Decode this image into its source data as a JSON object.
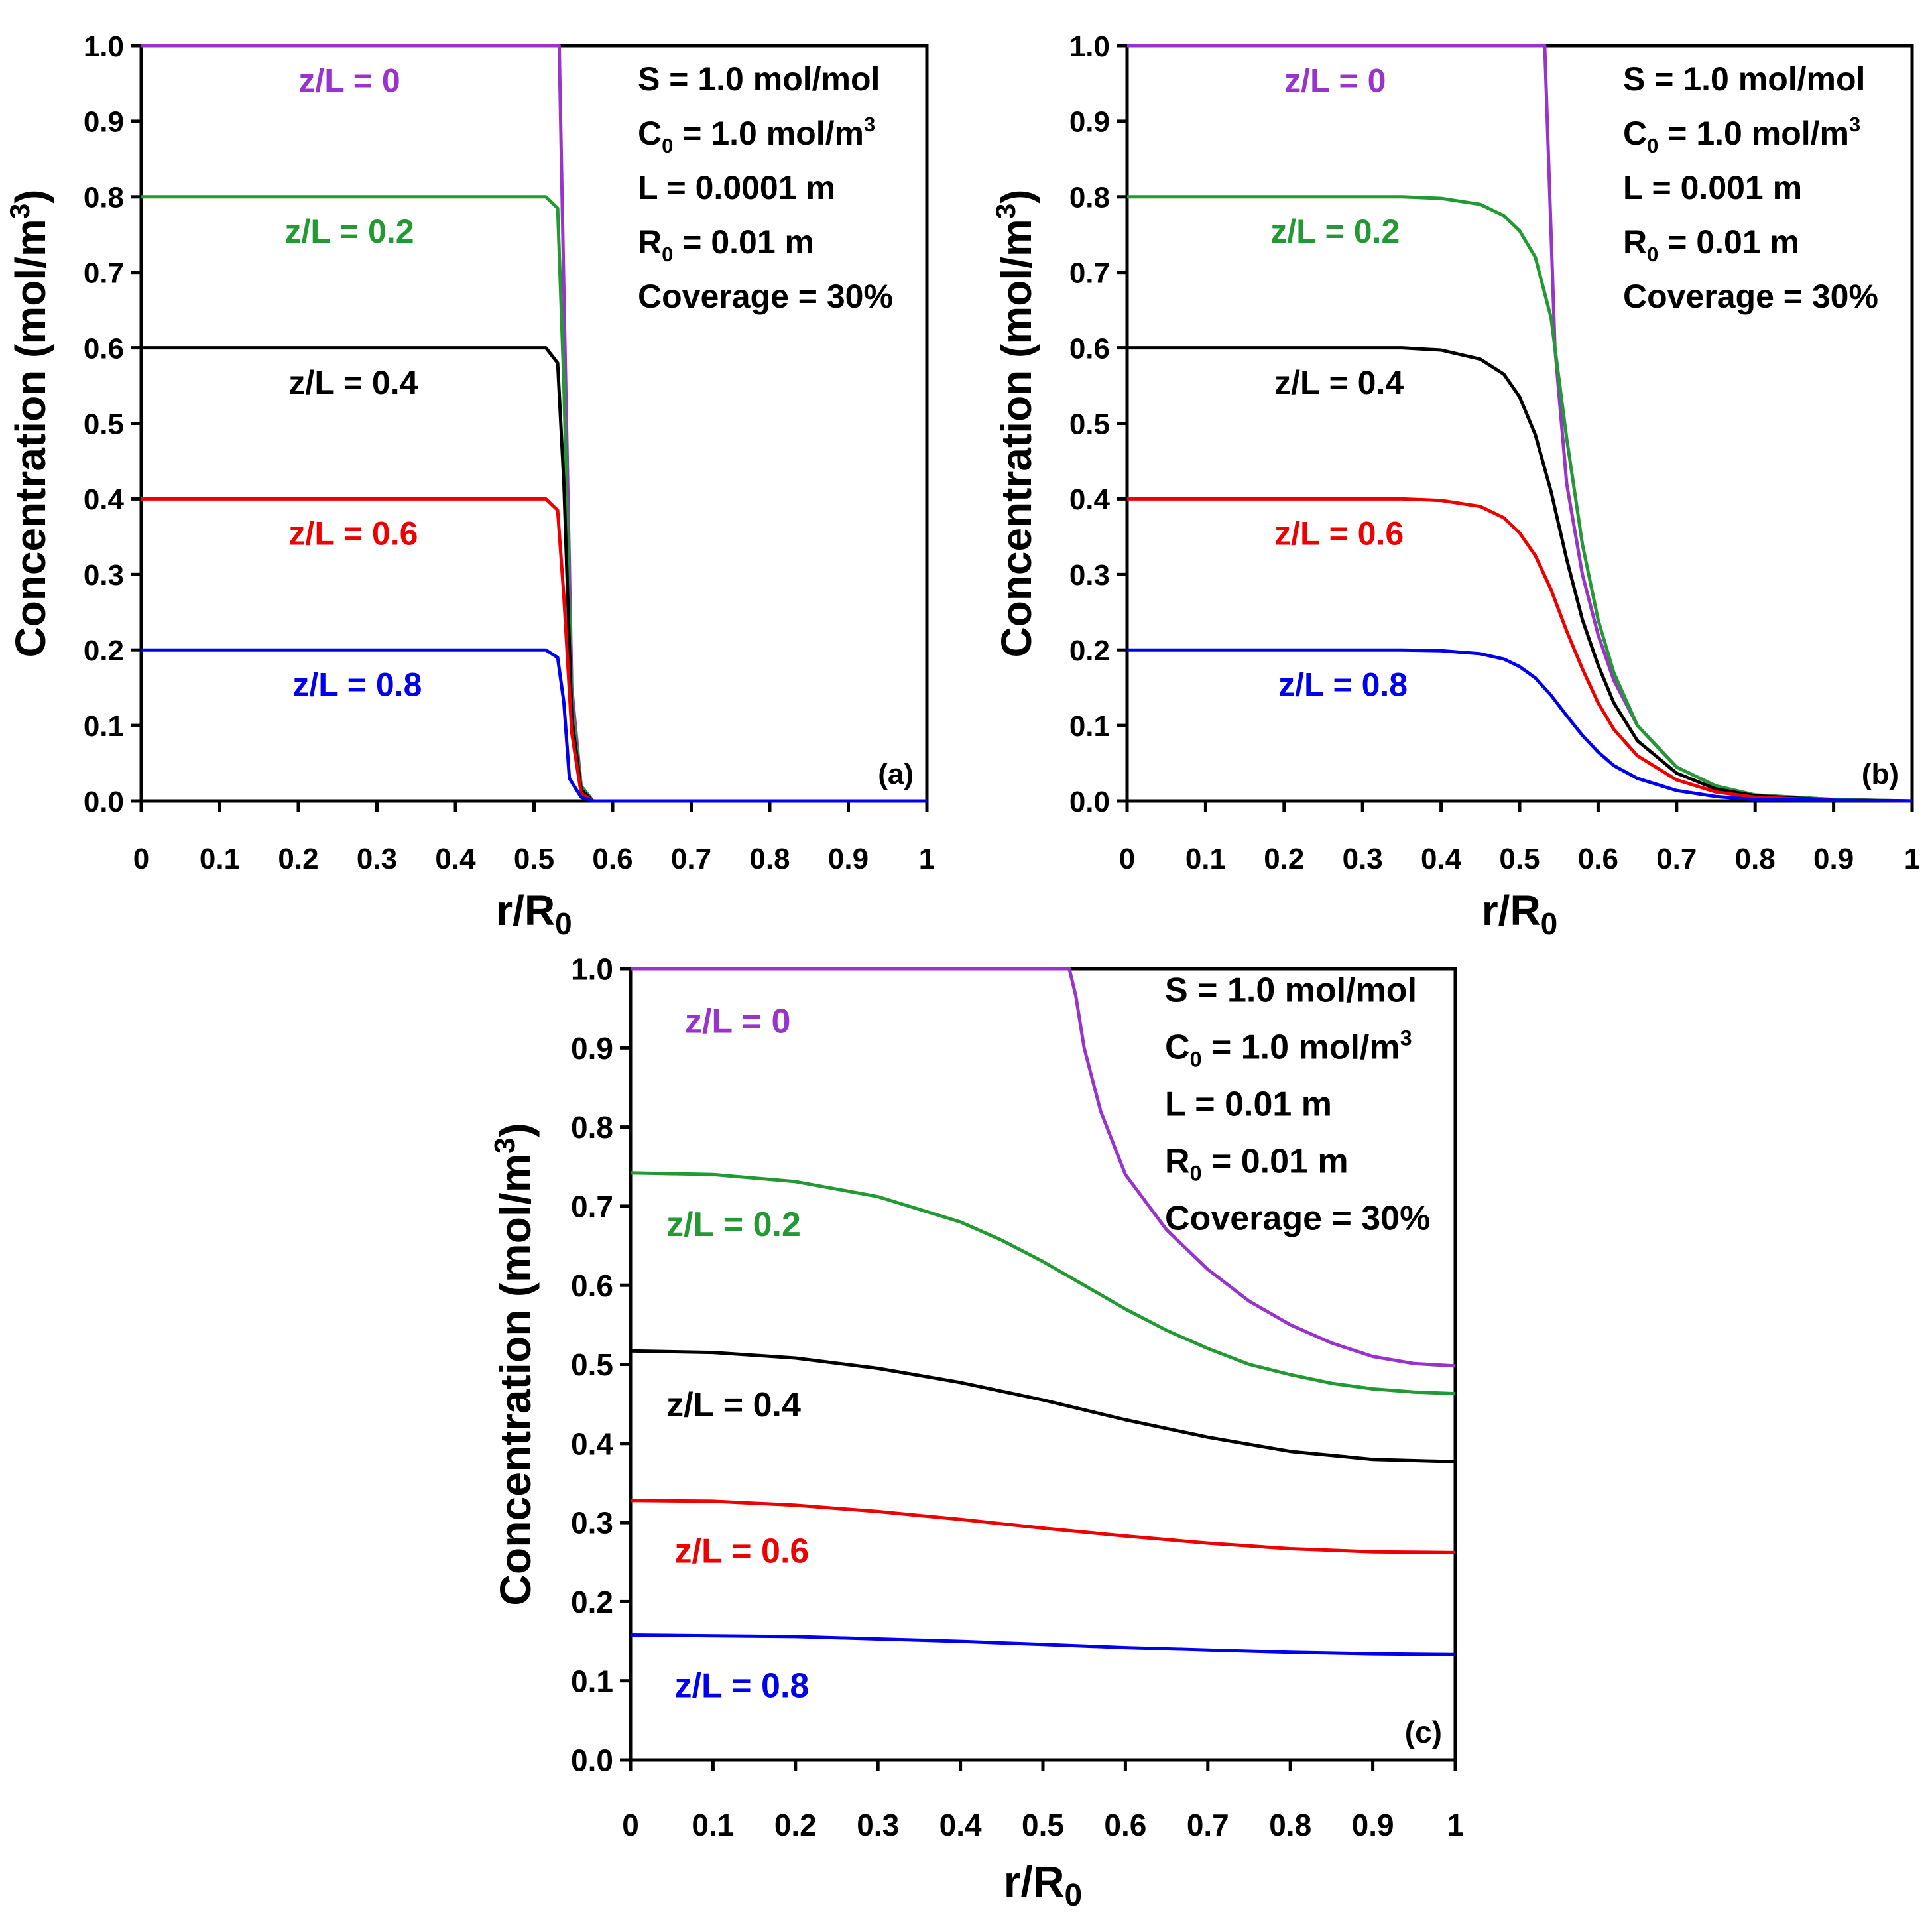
{
  "chart_data": [
    {
      "type": "line",
      "panel_label": "(a)",
      "xlabel": {
        "main": "r/R",
        "sub": "0"
      },
      "ylabel": {
        "main": "Concentration (mol/m",
        "sup": "3",
        "close": ")"
      },
      "xlim": [
        0,
        1
      ],
      "ylim": [
        0,
        1
      ],
      "xticks": [
        "0",
        "0.1",
        "0.2",
        "0.3",
        "0.4",
        "0.5",
        "0.6",
        "0.7",
        "0.8",
        "0.9",
        "1"
      ],
      "yticks": [
        "0.0",
        "0.1",
        "0.2",
        "0.3",
        "0.4",
        "0.5",
        "0.6",
        "0.7",
        "0.8",
        "0.9",
        "1.0"
      ],
      "params": [
        {
          "text": "S = 1.0 mol/mol"
        },
        {
          "pre": "C",
          "sub": "0",
          "post": " = 1.0 mol/m",
          "sup": "3"
        },
        {
          "text": "L = 0.0001 m"
        },
        {
          "pre": "R",
          "sub": "0",
          "post": " = 0.01 m"
        },
        {
          "text": "Coverage = 30%"
        }
      ],
      "series": [
        {
          "name": "z/L = 0",
          "color": "#9933CC",
          "points": [
            [
              0,
              1.0
            ],
            [
              0.532,
              1.0
            ],
            [
              0.539,
              0.62
            ],
            [
              0.548,
              0.15
            ],
            [
              0.56,
              0.02
            ],
            [
              0.575,
              0.0
            ],
            [
              1.0,
              0.0
            ]
          ]
        },
        {
          "name": "z/L = 0.2",
          "color": "#229933",
          "points": [
            [
              0,
              0.8
            ],
            [
              0.515,
              0.8
            ],
            [
              0.53,
              0.785
            ],
            [
              0.538,
              0.55
            ],
            [
              0.548,
              0.13
            ],
            [
              0.56,
              0.02
            ],
            [
              0.575,
              0.0
            ],
            [
              1.0,
              0.0
            ]
          ]
        },
        {
          "name": "z/L = 0.4",
          "color": "#000000",
          "points": [
            [
              0,
              0.6
            ],
            [
              0.515,
              0.6
            ],
            [
              0.53,
              0.58
            ],
            [
              0.538,
              0.42
            ],
            [
              0.548,
              0.11
            ],
            [
              0.56,
              0.015
            ],
            [
              0.575,
              0.0
            ],
            [
              1.0,
              0.0
            ]
          ]
        },
        {
          "name": "z/L = 0.6",
          "color": "#EE0000",
          "points": [
            [
              0,
              0.4
            ],
            [
              0.515,
              0.4
            ],
            [
              0.53,
              0.385
            ],
            [
              0.538,
              0.27
            ],
            [
              0.548,
              0.09
            ],
            [
              0.56,
              0.01
            ],
            [
              0.575,
              0.0
            ],
            [
              1.0,
              0.0
            ]
          ]
        },
        {
          "name": "z/L = 0.8",
          "color": "#0000EE",
          "points": [
            [
              0,
              0.2
            ],
            [
              0.515,
              0.2
            ],
            [
              0.53,
              0.19
            ],
            [
              0.538,
              0.13
            ],
            [
              0.545,
              0.03
            ],
            [
              0.56,
              0.005
            ],
            [
              0.575,
              0.0
            ],
            [
              1.0,
              0.0
            ]
          ]
        }
      ],
      "series_labels": [
        {
          "text": "z/L = 0",
          "color": "#9933CC",
          "x": 0.265,
          "y": 0.955
        },
        {
          "text": "z/L = 0.2",
          "color": "#229933",
          "x": 0.265,
          "y": 0.755
        },
        {
          "text": "z/L = 0.4",
          "color": "#000000",
          "x": 0.27,
          "y": 0.555
        },
        {
          "text": "z/L = 0.6",
          "color": "#EE0000",
          "x": 0.27,
          "y": 0.355
        },
        {
          "text": "z/L = 0.8",
          "color": "#0000EE",
          "x": 0.275,
          "y": 0.155
        }
      ]
    },
    {
      "type": "line",
      "panel_label": "(b)",
      "xlabel": {
        "main": "r/R",
        "sub": "0"
      },
      "ylabel": {
        "main": "Concentration (mol/m",
        "sup": "3",
        "close": ")"
      },
      "xlim": [
        0,
        1
      ],
      "ylim": [
        0,
        1
      ],
      "xticks": [
        "0",
        "0.1",
        "0.2",
        "0.3",
        "0.4",
        "0.5",
        "0.6",
        "0.7",
        "0.8",
        "0.9",
        "1"
      ],
      "yticks": [
        "0.0",
        "0.1",
        "0.2",
        "0.3",
        "0.4",
        "0.5",
        "0.6",
        "0.7",
        "0.8",
        "0.9",
        "1.0"
      ],
      "params": [
        {
          "text": "S = 1.0 mol/mol"
        },
        {
          "pre": "C",
          "sub": "0",
          "post": " = 1.0 mol/m",
          "sup": "3"
        },
        {
          "text": "L = 0.001 m"
        },
        {
          "pre": "R",
          "sub": "0",
          "post": " = 0.01 m"
        },
        {
          "text": "Coverage = 30%"
        }
      ],
      "series": [
        {
          "name": "z/L = 0",
          "color": "#9933CC",
          "points": [
            [
              0,
              1.0
            ],
            [
              0.532,
              1.0
            ],
            [
              0.545,
              0.6
            ],
            [
              0.56,
              0.42
            ],
            [
              0.58,
              0.3
            ],
            [
              0.6,
              0.22
            ],
            [
              0.62,
              0.16
            ],
            [
              0.65,
              0.1
            ],
            [
              0.7,
              0.045
            ],
            [
              0.75,
              0.02
            ],
            [
              0.8,
              0.008
            ],
            [
              0.9,
              0.002
            ],
            [
              1.0,
              0.0
            ]
          ]
        },
        {
          "name": "z/L = 0.2",
          "color": "#229933",
          "points": [
            [
              0,
              0.8
            ],
            [
              0.35,
              0.8
            ],
            [
              0.4,
              0.798
            ],
            [
              0.45,
              0.79
            ],
            [
              0.48,
              0.775
            ],
            [
              0.5,
              0.755
            ],
            [
              0.52,
              0.72
            ],
            [
              0.54,
              0.64
            ],
            [
              0.56,
              0.48
            ],
            [
              0.58,
              0.34
            ],
            [
              0.6,
              0.24
            ],
            [
              0.62,
              0.17
            ],
            [
              0.65,
              0.1
            ],
            [
              0.7,
              0.045
            ],
            [
              0.75,
              0.02
            ],
            [
              0.8,
              0.008
            ],
            [
              0.9,
              0.002
            ],
            [
              1.0,
              0.0
            ]
          ]
        },
        {
          "name": "z/L = 0.4",
          "color": "#000000",
          "points": [
            [
              0,
              0.6
            ],
            [
              0.35,
              0.6
            ],
            [
              0.4,
              0.597
            ],
            [
              0.45,
              0.585
            ],
            [
              0.48,
              0.565
            ],
            [
              0.5,
              0.535
            ],
            [
              0.52,
              0.485
            ],
            [
              0.54,
              0.41
            ],
            [
              0.56,
              0.32
            ],
            [
              0.58,
              0.24
            ],
            [
              0.6,
              0.18
            ],
            [
              0.62,
              0.13
            ],
            [
              0.65,
              0.08
            ],
            [
              0.7,
              0.037
            ],
            [
              0.75,
              0.016
            ],
            [
              0.8,
              0.007
            ],
            [
              0.9,
              0.001
            ],
            [
              1.0,
              0.0
            ]
          ]
        },
        {
          "name": "z/L = 0.6",
          "color": "#EE0000",
          "points": [
            [
              0,
              0.4
            ],
            [
              0.35,
              0.4
            ],
            [
              0.4,
              0.398
            ],
            [
              0.45,
              0.39
            ],
            [
              0.48,
              0.375
            ],
            [
              0.5,
              0.355
            ],
            [
              0.52,
              0.325
            ],
            [
              0.54,
              0.28
            ],
            [
              0.56,
              0.225
            ],
            [
              0.58,
              0.175
            ],
            [
              0.6,
              0.13
            ],
            [
              0.62,
              0.095
            ],
            [
              0.65,
              0.06
            ],
            [
              0.7,
              0.028
            ],
            [
              0.75,
              0.012
            ],
            [
              0.8,
              0.005
            ],
            [
              0.9,
              0.001
            ],
            [
              1.0,
              0.0
            ]
          ]
        },
        {
          "name": "z/L = 0.8",
          "color": "#0000EE",
          "points": [
            [
              0,
              0.2
            ],
            [
              0.35,
              0.2
            ],
            [
              0.4,
              0.199
            ],
            [
              0.45,
              0.195
            ],
            [
              0.48,
              0.188
            ],
            [
              0.5,
              0.178
            ],
            [
              0.52,
              0.163
            ],
            [
              0.54,
              0.14
            ],
            [
              0.56,
              0.113
            ],
            [
              0.58,
              0.087
            ],
            [
              0.6,
              0.065
            ],
            [
              0.62,
              0.047
            ],
            [
              0.65,
              0.03
            ],
            [
              0.7,
              0.014
            ],
            [
              0.75,
              0.006
            ],
            [
              0.8,
              0.002
            ],
            [
              1.0,
              0.0
            ]
          ]
        }
      ],
      "series_labels": [
        {
          "text": "z/L = 0",
          "color": "#9933CC",
          "x": 0.265,
          "y": 0.955
        },
        {
          "text": "z/L = 0.2",
          "color": "#229933",
          "x": 0.265,
          "y": 0.755
        },
        {
          "text": "z/L = 0.4",
          "color": "#000000",
          "x": 0.27,
          "y": 0.555
        },
        {
          "text": "z/L = 0.6",
          "color": "#EE0000",
          "x": 0.27,
          "y": 0.355
        },
        {
          "text": "z/L = 0.8",
          "color": "#0000EE",
          "x": 0.275,
          "y": 0.155
        }
      ]
    },
    {
      "type": "line",
      "panel_label": "(c)",
      "xlabel": {
        "main": "r/R",
        "sub": "0"
      },
      "ylabel": {
        "main": "Concentration (mol/m",
        "sup": "3",
        "close": ")"
      },
      "xlim": [
        0,
        1
      ],
      "ylim": [
        0,
        1
      ],
      "xticks": [
        "0",
        "0.1",
        "0.2",
        "0.3",
        "0.4",
        "0.5",
        "0.6",
        "0.7",
        "0.8",
        "0.9",
        "1"
      ],
      "yticks": [
        "0.0",
        "0.1",
        "0.2",
        "0.3",
        "0.4",
        "0.5",
        "0.6",
        "0.7",
        "0.8",
        "0.9",
        "1.0"
      ],
      "params": [
        {
          "text": "S = 1.0 mol/mol"
        },
        {
          "pre": "C",
          "sub": "0",
          "post": " = 1.0 mol/m",
          "sup": "3"
        },
        {
          "text": "L = 0.01 m"
        },
        {
          "pre": "R",
          "sub": "0",
          "post": " = 0.01 m"
        },
        {
          "text": "Coverage = 30%"
        }
      ],
      "series": [
        {
          "name": "z/L = 0",
          "color": "#9933CC",
          "points": [
            [
              0,
              1.0
            ],
            [
              0.532,
              1.0
            ],
            [
              0.54,
              0.965
            ],
            [
              0.55,
              0.9
            ],
            [
              0.57,
              0.82
            ],
            [
              0.6,
              0.74
            ],
            [
              0.65,
              0.67
            ],
            [
              0.7,
              0.62
            ],
            [
              0.75,
              0.58
            ],
            [
              0.8,
              0.55
            ],
            [
              0.85,
              0.527
            ],
            [
              0.9,
              0.51
            ],
            [
              0.95,
              0.501
            ],
            [
              1.0,
              0.498
            ]
          ]
        },
        {
          "name": "z/L = 0.2",
          "color": "#229933",
          "points": [
            [
              0,
              0.742
            ],
            [
              0.1,
              0.74
            ],
            [
              0.2,
              0.731
            ],
            [
              0.3,
              0.712
            ],
            [
              0.4,
              0.68
            ],
            [
              0.45,
              0.657
            ],
            [
              0.5,
              0.63
            ],
            [
              0.55,
              0.6
            ],
            [
              0.6,
              0.57
            ],
            [
              0.65,
              0.543
            ],
            [
              0.7,
              0.52
            ],
            [
              0.75,
              0.5
            ],
            [
              0.8,
              0.487
            ],
            [
              0.85,
              0.476
            ],
            [
              0.9,
              0.469
            ],
            [
              0.95,
              0.465
            ],
            [
              1.0,
              0.463
            ]
          ]
        },
        {
          "name": "z/L = 0.4",
          "color": "#000000",
          "points": [
            [
              0,
              0.517
            ],
            [
              0.1,
              0.515
            ],
            [
              0.2,
              0.508
            ],
            [
              0.3,
              0.495
            ],
            [
              0.4,
              0.477
            ],
            [
              0.5,
              0.455
            ],
            [
              0.6,
              0.43
            ],
            [
              0.7,
              0.408
            ],
            [
              0.8,
              0.39
            ],
            [
              0.9,
              0.38
            ],
            [
              1.0,
              0.377
            ]
          ]
        },
        {
          "name": "z/L = 0.6",
          "color": "#EE0000",
          "points": [
            [
              0,
              0.328
            ],
            [
              0.1,
              0.327
            ],
            [
              0.2,
              0.322
            ],
            [
              0.3,
              0.314
            ],
            [
              0.4,
              0.304
            ],
            [
              0.5,
              0.293
            ],
            [
              0.6,
              0.283
            ],
            [
              0.7,
              0.274
            ],
            [
              0.8,
              0.267
            ],
            [
              0.9,
              0.263
            ],
            [
              1.0,
              0.262
            ]
          ]
        },
        {
          "name": "z/L = 0.8",
          "color": "#0000EE",
          "points": [
            [
              0,
              0.158
            ],
            [
              0.1,
              0.157
            ],
            [
              0.2,
              0.156
            ],
            [
              0.3,
              0.153
            ],
            [
              0.4,
              0.15
            ],
            [
              0.5,
              0.146
            ],
            [
              0.6,
              0.142
            ],
            [
              0.7,
              0.139
            ],
            [
              0.8,
              0.136
            ],
            [
              0.9,
              0.134
            ],
            [
              1.0,
              0.133
            ]
          ]
        }
      ],
      "series_labels": [
        {
          "text": "z/L = 0",
          "color": "#9933CC",
          "x": 0.13,
          "y": 0.935
        },
        {
          "text": "z/L = 0.2",
          "color": "#229933",
          "x": 0.125,
          "y": 0.678
        },
        {
          "text": "z/L = 0.4",
          "color": "#000000",
          "x": 0.125,
          "y": 0.45
        },
        {
          "text": "z/L = 0.6",
          "color": "#EE0000",
          "x": 0.135,
          "y": 0.265
        },
        {
          "text": "z/L = 0.8",
          "color": "#0000EE",
          "x": 0.135,
          "y": 0.095
        }
      ]
    }
  ]
}
